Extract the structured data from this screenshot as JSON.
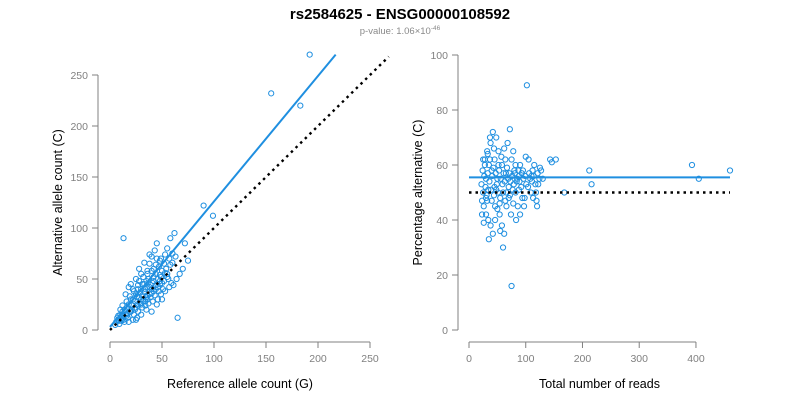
{
  "header": {
    "title": "rs2584625 - ENSG00000108592",
    "pvalue_prefix": "p-value: 1.06×10",
    "pvalue_exponent": "-46"
  },
  "colors": {
    "points": "#1f8fe0",
    "fit": "#1f8fe0",
    "reference": "#000000"
  },
  "chart_data": [
    {
      "type": "scatter",
      "xlabel": "Reference allele count (G)",
      "ylabel": "Alternative allele count (C)",
      "xlim": [
        0,
        250
      ],
      "ylim": [
        0,
        250
      ],
      "xticks": [
        0,
        50,
        100,
        150,
        200,
        250
      ],
      "yticks": [
        0,
        50,
        100,
        150,
        200,
        250
      ],
      "grid": false,
      "fit_line": {
        "x": [
          0,
          217
        ],
        "y": [
          3,
          270
        ]
      },
      "reference_line": {
        "x": [
          0,
          268
        ],
        "y": [
          0,
          268
        ]
      },
      "points": [
        [
          192,
          270
        ],
        [
          155,
          232
        ],
        [
          183,
          220
        ],
        [
          90,
          122
        ],
        [
          99,
          112
        ],
        [
          65,
          12
        ],
        [
          13,
          90
        ],
        [
          72,
          85
        ],
        [
          70,
          60
        ],
        [
          75,
          68
        ],
        [
          62,
          95
        ],
        [
          58,
          90
        ],
        [
          63,
          72
        ],
        [
          55,
          80
        ],
        [
          60,
          75
        ],
        [
          45,
          85
        ],
        [
          40,
          72
        ],
        [
          48,
          68
        ],
        [
          52,
          65
        ],
        [
          42,
          60
        ],
        [
          38,
          65
        ],
        [
          45,
          70
        ],
        [
          50,
          58
        ],
        [
          55,
          55
        ],
        [
          42,
          52
        ],
        [
          36,
          58
        ],
        [
          30,
          55
        ],
        [
          28,
          48
        ],
        [
          33,
          45
        ],
        [
          38,
          42
        ],
        [
          44,
          40
        ],
        [
          48,
          45
        ],
        [
          52,
          48
        ],
        [
          56,
          50
        ],
        [
          40,
          36
        ],
        [
          35,
          32
        ],
        [
          30,
          30
        ],
        [
          25,
          35
        ],
        [
          22,
          40
        ],
        [
          20,
          30
        ],
        [
          18,
          25
        ],
        [
          16,
          28
        ],
        [
          14,
          20
        ],
        [
          12,
          18
        ],
        [
          10,
          15
        ],
        [
          8,
          10
        ],
        [
          6,
          8
        ],
        [
          5,
          5
        ],
        [
          9,
          6
        ],
        [
          11,
          12
        ],
        [
          13,
          10
        ],
        [
          15,
          15
        ],
        [
          17,
          12
        ],
        [
          19,
          18
        ],
        [
          21,
          20
        ],
        [
          23,
          15
        ],
        [
          24,
          22
        ],
        [
          26,
          25
        ],
        [
          27,
          18
        ],
        [
          29,
          26
        ],
        [
          31,
          22
        ],
        [
          32,
          28
        ],
        [
          34,
          24
        ],
        [
          36,
          30
        ],
        [
          37,
          26
        ],
        [
          39,
          32
        ],
        [
          41,
          28
        ],
        [
          43,
          34
        ],
        [
          46,
          30
        ],
        [
          47,
          38
        ],
        [
          49,
          35
        ],
        [
          51,
          40
        ],
        [
          53,
          38
        ],
        [
          57,
          42
        ],
        [
          59,
          46
        ],
        [
          61,
          44
        ],
        [
          64,
          50
        ],
        [
          67,
          55
        ],
        [
          35,
          20
        ],
        [
          30,
          15
        ],
        [
          26,
          12
        ],
        [
          22,
          10
        ],
        [
          18,
          8
        ],
        [
          25,
          10
        ],
        [
          40,
          18
        ],
        [
          45,
          25
        ],
        [
          50,
          30
        ],
        [
          20,
          45
        ],
        [
          25,
          50
        ],
        [
          30,
          40
        ],
        [
          35,
          48
        ],
        [
          15,
          35
        ],
        [
          18,
          42
        ],
        [
          28,
          60
        ],
        [
          33,
          66
        ],
        [
          38,
          74
        ],
        [
          43,
          78
        ],
        [
          47,
          62
        ],
        [
          32,
          52
        ],
        [
          27,
          44
        ],
        [
          23,
          38
        ],
        [
          19,
          33
        ],
        [
          16,
          22
        ],
        [
          12,
          24
        ],
        [
          10,
          20
        ],
        [
          8,
          14
        ],
        [
          7,
          12
        ],
        [
          14,
          8
        ],
        [
          22,
          30
        ],
        [
          26,
          33
        ],
        [
          29,
          37
        ],
        [
          34,
          40
        ],
        [
          37,
          50
        ],
        [
          41,
          46
        ],
        [
          44,
          55
        ],
        [
          49,
          52
        ],
        [
          54,
          60
        ],
        [
          31,
          34
        ],
        [
          24,
          28
        ],
        [
          21,
          24
        ],
        [
          17,
          16
        ],
        [
          13,
          14
        ],
        [
          11,
          9
        ],
        [
          28,
          32
        ],
        [
          33,
          37
        ],
        [
          39,
          44
        ],
        [
          46,
          50
        ],
        [
          53,
          56
        ],
        [
          58,
          64
        ],
        [
          60,
          66
        ],
        [
          36,
          42
        ],
        [
          42,
          48
        ],
        [
          48,
          54
        ],
        [
          20,
          18
        ],
        [
          24,
          20
        ],
        [
          27,
          24
        ],
        [
          32,
          30
        ],
        [
          36,
          34
        ],
        [
          40,
          40
        ],
        [
          44,
          44
        ],
        [
          48,
          48
        ],
        [
          16,
          14
        ],
        [
          12,
          11
        ],
        [
          9,
          9
        ],
        [
          30,
          25
        ],
        [
          34,
          28
        ],
        [
          38,
          35
        ],
        [
          42,
          38
        ],
        [
          46,
          42
        ],
        [
          50,
          46
        ],
        [
          55,
          52
        ],
        [
          27,
          40
        ],
        [
          31,
          45
        ],
        [
          36,
          55
        ],
        [
          40,
          58
        ],
        [
          44,
          64
        ],
        [
          49,
          70
        ],
        [
          53,
          74
        ],
        [
          57,
          70
        ]
      ]
    },
    {
      "type": "scatter",
      "xlabel": "Total number of reads",
      "ylabel": "Percentage alternative (C)",
      "xlim": [
        0,
        460
      ],
      "ylim": [
        0,
        100
      ],
      "xticks": [
        0,
        100,
        200,
        300,
        400
      ],
      "yticks": [
        0,
        20,
        40,
        60,
        80,
        100
      ],
      "grid": false,
      "fit_line": {
        "x": [
          0,
          460
        ],
        "y": [
          55.5,
          55.5
        ]
      },
      "reference_line": {
        "x": [
          0,
          460
        ],
        "y": [
          50,
          50
        ]
      },
      "points": [
        [
          102,
          89
        ],
        [
          75,
          16
        ],
        [
          460,
          58
        ],
        [
          393,
          60
        ],
        [
          405,
          55
        ],
        [
          212,
          58
        ],
        [
          216,
          53
        ],
        [
          168,
          50
        ],
        [
          153,
          62
        ],
        [
          146,
          61
        ],
        [
          143,
          62
        ],
        [
          130,
          55
        ],
        [
          125,
          59
        ],
        [
          120,
          45
        ],
        [
          115,
          60
        ],
        [
          110,
          56
        ],
        [
          105,
          62
        ],
        [
          100,
          63
        ],
        [
          95,
          58
        ],
        [
          90,
          60
        ],
        [
          85,
          55
        ],
        [
          80,
          58
        ],
        [
          75,
          62
        ],
        [
          70,
          52
        ],
        [
          65,
          57
        ],
        [
          60,
          50
        ],
        [
          55,
          48
        ],
        [
          50,
          55
        ],
        [
          45,
          52
        ],
        [
          40,
          58
        ],
        [
          35,
          60
        ],
        [
          30,
          55
        ],
        [
          25,
          50
        ],
        [
          22,
          53
        ],
        [
          28,
          62
        ],
        [
          32,
          65
        ],
        [
          38,
          68
        ],
        [
          42,
          72
        ],
        [
          48,
          70
        ],
        [
          52,
          65
        ],
        [
          58,
          60
        ],
        [
          62,
          66
        ],
        [
          68,
          68
        ],
        [
          72,
          73
        ],
        [
          78,
          65
        ],
        [
          82,
          60
        ],
        [
          88,
          56
        ],
        [
          92,
          52
        ],
        [
          98,
          48
        ],
        [
          104,
          52
        ],
        [
          108,
          55
        ],
        [
          112,
          58
        ],
        [
          118,
          50
        ],
        [
          122,
          53
        ],
        [
          26,
          45
        ],
        [
          30,
          42
        ],
        [
          34,
          40
        ],
        [
          38,
          38
        ],
        [
          42,
          35
        ],
        [
          46,
          40
        ],
        [
          50,
          44
        ],
        [
          54,
          42
        ],
        [
          58,
          38
        ],
        [
          62,
          35
        ],
        [
          66,
          45
        ],
        [
          70,
          48
        ],
        [
          74,
          42
        ],
        [
          78,
          46
        ],
        [
          82,
          50
        ],
        [
          86,
          45
        ],
        [
          90,
          42
        ],
        [
          94,
          48
        ],
        [
          35,
          33
        ],
        [
          40,
          47
        ],
        [
          44,
          49
        ],
        [
          48,
          51
        ],
        [
          24,
          58
        ],
        [
          27,
          56
        ],
        [
          29,
          52
        ],
        [
          31,
          49
        ],
        [
          33,
          57
        ],
        [
          36,
          54
        ],
        [
          39,
          51
        ],
        [
          41,
          56
        ],
        [
          43,
          59
        ],
        [
          47,
          57
        ],
        [
          49,
          53
        ],
        [
          51,
          50
        ],
        [
          53,
          58
        ],
        [
          56,
          55
        ],
        [
          59,
          53
        ],
        [
          61,
          57
        ],
        [
          63,
          54
        ],
        [
          67,
          59
        ],
        [
          69,
          55
        ],
        [
          71,
          57
        ],
        [
          73,
          54
        ],
        [
          76,
          56
        ],
        [
          79,
          53
        ],
        [
          81,
          57
        ],
        [
          84,
          54
        ],
        [
          87,
          58
        ],
        [
          89,
          54
        ],
        [
          93,
          57
        ],
        [
          96,
          55
        ],
        [
          99,
          56
        ],
        [
          101,
          53
        ],
        [
          106,
          57
        ],
        [
          111,
          54
        ],
        [
          114,
          56
        ],
        [
          117,
          53
        ],
        [
          121,
          57
        ],
        [
          124,
          55
        ],
        [
          127,
          58
        ],
        [
          23,
          47
        ],
        [
          25,
          62
        ],
        [
          28,
          60
        ],
        [
          32,
          47
        ],
        [
          37,
          62
        ],
        [
          45,
          62
        ],
        [
          52,
          60
        ],
        [
          57,
          63
        ],
        [
          64,
          62
        ],
        [
          33,
          64
        ],
        [
          37,
          70
        ],
        [
          44,
          66
        ],
        [
          60,
          30
        ],
        [
          55,
          36
        ],
        [
          83,
          40
        ],
        [
          97,
          45
        ],
        [
          64,
          47
        ],
        [
          23,
          42
        ],
        [
          26,
          39
        ],
        [
          30,
          48
        ],
        [
          34,
          51
        ],
        [
          46,
          45
        ],
        [
          54,
          46
        ],
        [
          66,
          50
        ],
        [
          72,
          49
        ],
        [
          77,
          51
        ],
        [
          88,
          51
        ],
        [
          109,
          50
        ],
        [
          113,
          48
        ],
        [
          119,
          47
        ]
      ]
    }
  ]
}
